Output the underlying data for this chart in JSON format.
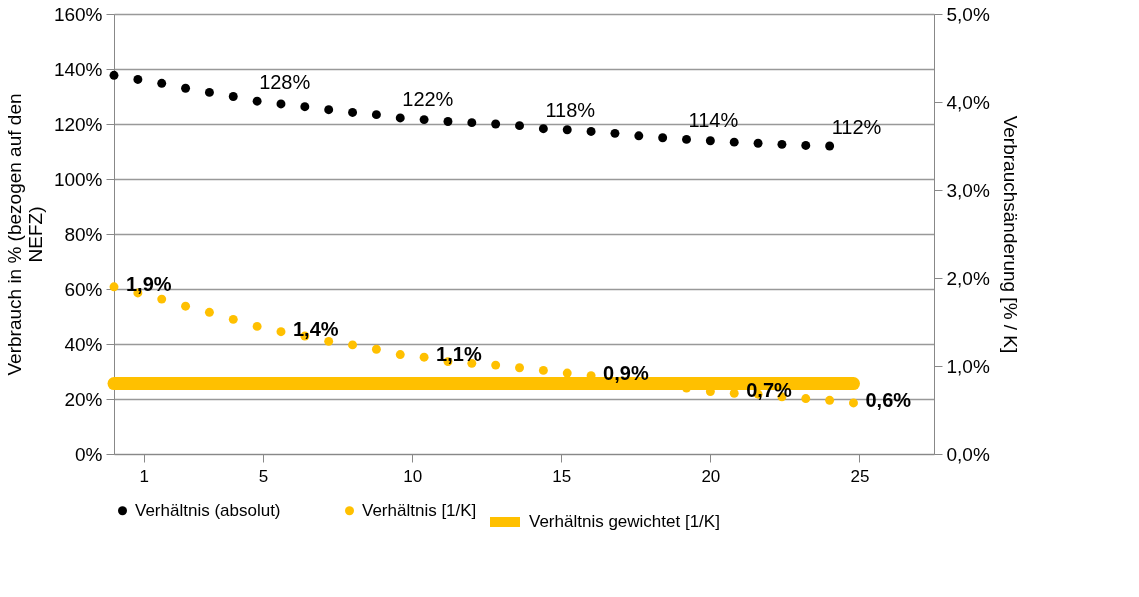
{
  "chart_data": {
    "type": "scatter",
    "xlim": [
      0,
      27.5
    ],
    "xticks": [
      1,
      5,
      10,
      15,
      20,
      25
    ],
    "ylabel": "Verbrauch in % (bezogen auf den NEFZ)",
    "y2label": "Verbrauchsänderung [% / K]",
    "ylim": [
      0,
      160
    ],
    "yticks": [
      {
        "value": 0,
        "label": "0%"
      },
      {
        "value": 20,
        "label": "20%"
      },
      {
        "value": 40,
        "label": "40%"
      },
      {
        "value": 60,
        "label": "60%"
      },
      {
        "value": 80,
        "label": "80%"
      },
      {
        "value": 100,
        "label": "100%"
      },
      {
        "value": 120,
        "label": "120%"
      },
      {
        "value": 140,
        "label": "140%"
      },
      {
        "value": 160,
        "label": "160%"
      }
    ],
    "y2lim": [
      0,
      5
    ],
    "y2ticks": [
      {
        "value": 0,
        "label": "0,0%"
      },
      {
        "value": 1,
        "label": "1,0%"
      },
      {
        "value": 2,
        "label": "2,0%"
      },
      {
        "value": 3,
        "label": "3,0%"
      },
      {
        "value": 4,
        "label": "4,0%"
      },
      {
        "value": 5,
        "label": "5,0%"
      }
    ],
    "grid": "y",
    "legend": "bottom",
    "marker": "circle",
    "series": [
      {
        "name": "Verhältnis (absolut)",
        "color": "#000000",
        "x": [
          0,
          0.8,
          1.6,
          2.4,
          3.2,
          4,
          4.8,
          5.6,
          6.4,
          7.2,
          8,
          8.8,
          9.6,
          10.4,
          11.2,
          12,
          12.8,
          13.6,
          14.4,
          15.2,
          16,
          16.8,
          17.6,
          18.4,
          19.2,
          20,
          20.8,
          21.6,
          22.4,
          23.2,
          24
        ],
        "values": [
          137.7,
          136.2,
          134.8,
          133.0,
          131.5,
          130.0,
          128.3,
          127.3,
          126.3,
          125.2,
          124.2,
          123.4,
          122.2,
          121.6,
          120.9,
          120.5,
          120.0,
          119.4,
          118.3,
          117.9,
          117.3,
          116.6,
          115.7,
          115.0,
          114.4,
          113.9,
          113.4,
          113.0,
          112.6,
          112.2,
          112.0
        ],
        "value_labels": [
          null,
          null,
          null,
          null,
          null,
          null,
          "128%",
          null,
          null,
          null,
          null,
          null,
          "122%",
          null,
          null,
          null,
          null,
          null,
          "118%",
          null,
          null,
          null,
          null,
          null,
          "114%",
          null,
          null,
          null,
          null,
          null,
          "112%"
        ]
      },
      {
        "name": "Verhältnis [1/K]",
        "axis": "y2",
        "color": "#ffc000",
        "x": [
          0,
          0.8,
          1.6,
          2.4,
          3.2,
          4,
          4.8,
          5.6,
          6.4,
          7.2,
          8,
          8.8,
          9.6,
          10.4,
          11.2,
          12,
          12.8,
          13.6,
          14.4,
          15.2,
          16,
          16.8,
          17.6,
          18.4,
          19.2,
          20,
          20.8,
          21.6,
          22.4,
          23.2,
          24,
          24.8
        ],
        "values": [
          1.9,
          1.83,
          1.76,
          1.68,
          1.61,
          1.53,
          1.45,
          1.39,
          1.34,
          1.28,
          1.24,
          1.19,
          1.13,
          1.1,
          1.05,
          1.03,
          1.01,
          0.98,
          0.95,
          0.92,
          0.89,
          null,
          null,
          null,
          0.75,
          0.71,
          0.69,
          0.68,
          0.65,
          0.63,
          0.61,
          0.58
        ],
        "value_labels": [
          "1,9%",
          null,
          null,
          null,
          null,
          null,
          null,
          "1,4%",
          null,
          null,
          null,
          null,
          null,
          "1,1%",
          null,
          null,
          null,
          null,
          null,
          null,
          "0,9%",
          null,
          null,
          null,
          null,
          null,
          "0,7%",
          null,
          null,
          null,
          null,
          "0,6%"
        ]
      },
      {
        "name": "Verhältnis gewichtet [1/K]",
        "type": "line",
        "marker": "none",
        "axis": "y2",
        "color": "#ffc000",
        "x": [
          0,
          24.8
        ],
        "values": [
          0.8,
          0.8
        ]
      }
    ]
  }
}
